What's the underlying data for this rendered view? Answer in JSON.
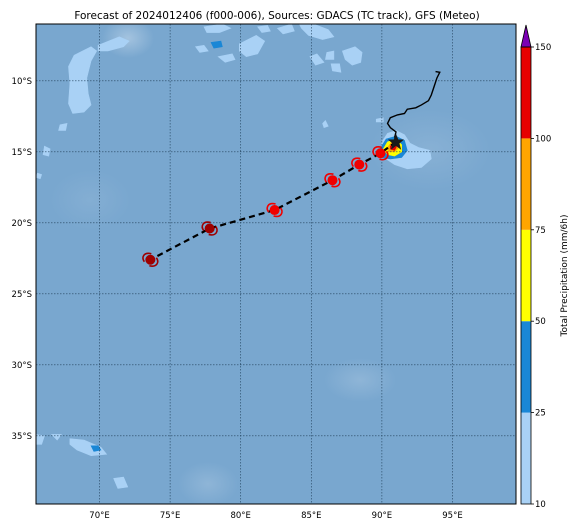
{
  "title": "Forecast of 2024012406 (f000-006), Sources: GDACS (TC track), GFS (Meteo)",
  "map": {
    "lon_range": [
      65.5,
      99.5
    ],
    "lat_range": [
      -39.8,
      -6.0
    ],
    "lon_ticks": [
      {
        "value": 70,
        "label": "70°E"
      },
      {
        "value": 75,
        "label": "75°E"
      },
      {
        "value": 80,
        "label": "80°E"
      },
      {
        "value": 85,
        "label": "85°E"
      },
      {
        "value": 90,
        "label": "90°E"
      },
      {
        "value": 95,
        "label": "95°E"
      }
    ],
    "lat_ticks": [
      {
        "value": -10,
        "label": "10°S"
      },
      {
        "value": -15,
        "label": "15°S"
      },
      {
        "value": -20,
        "label": "20°S"
      },
      {
        "value": -25,
        "label": "25°S"
      },
      {
        "value": -30,
        "label": "30°S"
      },
      {
        "value": -35,
        "label": "35°S"
      }
    ],
    "ocean_color": "#79a7cf",
    "gridlines": true
  },
  "colorbar": {
    "label": "Total Precipitation (mm/6h)",
    "ticks": [
      {
        "value": 10,
        "label": "10"
      },
      {
        "value": 25,
        "label": "25"
      },
      {
        "value": 50,
        "label": "50"
      },
      {
        "value": 75,
        "label": "75"
      },
      {
        "value": 100,
        "label": "100"
      },
      {
        "value": 150,
        "label": "150"
      }
    ],
    "bins": [
      {
        "from": 10,
        "to": 25,
        "color": "#a9d1f5"
      },
      {
        "from": 25,
        "to": 50,
        "color": "#1a87d6"
      },
      {
        "from": 50,
        "to": 75,
        "color": "#ffff00"
      },
      {
        "from": 75,
        "to": 100,
        "color": "#ffa500"
      },
      {
        "from": 100,
        "to": 150,
        "color": "#e60000"
      }
    ],
    "extend_color": "#7b00b4"
  },
  "observed_track": [
    [
      90.9,
      -14.0
    ],
    [
      91.0,
      -13.6
    ],
    [
      90.6,
      -13.3
    ],
    [
      90.4,
      -13.0
    ],
    [
      90.6,
      -12.6
    ],
    [
      91.1,
      -12.4
    ],
    [
      91.6,
      -12.3
    ],
    [
      91.8,
      -12.0
    ],
    [
      92.4,
      -11.9
    ],
    [
      92.8,
      -11.7
    ],
    [
      93.3,
      -11.4
    ],
    [
      93.5,
      -11.0
    ],
    [
      93.7,
      -10.4
    ],
    [
      93.9,
      -9.8
    ],
    [
      94.1,
      -9.4
    ],
    [
      93.8,
      -9.35
    ]
  ],
  "forecast_track": [
    {
      "lon": 91.0,
      "lat": -14.3,
      "intensity": "current"
    },
    {
      "lon": 89.9,
      "lat": -15.1,
      "intensity": "cyclone"
    },
    {
      "lon": 88.4,
      "lat": -15.9,
      "intensity": "cyclone"
    },
    {
      "lon": 86.5,
      "lat": -17.0,
      "intensity": "cyclone"
    },
    {
      "lon": 82.4,
      "lat": -19.1,
      "intensity": "cyclone"
    },
    {
      "lon": 77.8,
      "lat": -20.4,
      "intensity": "strong"
    },
    {
      "lon": 73.6,
      "lat": -22.6,
      "intensity": "strong"
    }
  ],
  "precip_areas": [
    {
      "level": 10,
      "points": [
        [
          68.2,
          -8.2
        ],
        [
          68.6,
          -8.0
        ],
        [
          69.4,
          -7.6
        ],
        [
          69.8,
          -7.9
        ],
        [
          69.4,
          -8.6
        ],
        [
          69.1,
          -9.8
        ],
        [
          69.2,
          -10.9
        ],
        [
          69.4,
          -11.7
        ],
        [
          68.9,
          -12.2
        ],
        [
          68.1,
          -12.3
        ],
        [
          67.8,
          -11.6
        ],
        [
          67.9,
          -10.2
        ],
        [
          67.8,
          -9.0
        ]
      ]
    },
    {
      "level": 10,
      "points": [
        [
          69.9,
          -7.5
        ],
        [
          71.4,
          -6.9
        ],
        [
          72.1,
          -7.2
        ],
        [
          71.7,
          -7.6
        ],
        [
          70.6,
          -7.9
        ],
        [
          69.9,
          -7.9
        ]
      ]
    },
    {
      "level": 10,
      "points": [
        [
          66.1,
          -14.6
        ],
        [
          66.5,
          -14.8
        ],
        [
          66.4,
          -15.3
        ],
        [
          66.0,
          -15.2
        ]
      ]
    },
    {
      "level": 10,
      "points": [
        [
          65.6,
          -16.5
        ],
        [
          65.9,
          -16.6
        ],
        [
          65.8,
          -16.9
        ],
        [
          65.5,
          -16.8
        ]
      ]
    },
    {
      "level": 10,
      "points": [
        [
          67.2,
          -13.1
        ],
        [
          67.7,
          -13.0
        ],
        [
          67.6,
          -13.5
        ],
        [
          67.1,
          -13.5
        ]
      ]
    },
    {
      "level": 10,
      "points": [
        [
          77.4,
          -6.2
        ],
        [
          78.7,
          -6.0
        ],
        [
          79.3,
          -6.3
        ],
        [
          78.5,
          -6.6
        ],
        [
          77.6,
          -6.6
        ]
      ]
    },
    {
      "level": 10,
      "points": [
        [
          76.8,
          -7.6
        ],
        [
          77.4,
          -7.5
        ],
        [
          77.7,
          -7.9
        ],
        [
          77.1,
          -8.0
        ]
      ]
    },
    {
      "level": 10,
      "points": [
        [
          78.4,
          -8.3
        ],
        [
          79.4,
          -8.1
        ],
        [
          79.6,
          -8.5
        ],
        [
          78.9,
          -8.7
        ]
      ]
    },
    {
      "level": 10,
      "points": [
        [
          79.9,
          -7.4
        ],
        [
          81.1,
          -6.8
        ],
        [
          81.7,
          -7.2
        ],
        [
          81.2,
          -8.1
        ],
        [
          80.4,
          -8.3
        ],
        [
          79.9,
          -7.9
        ]
      ]
    },
    {
      "level": 10,
      "points": [
        [
          81.2,
          -6.2
        ],
        [
          81.9,
          -6.1
        ],
        [
          82.1,
          -6.5
        ],
        [
          81.5,
          -6.6
        ]
      ]
    },
    {
      "level": 10,
      "points": [
        [
          82.6,
          -6.3
        ],
        [
          83.6,
          -6.0
        ],
        [
          83.8,
          -6.5
        ],
        [
          83.0,
          -6.7
        ]
      ]
    },
    {
      "level": 10,
      "points": [
        [
          84.1,
          -5.9
        ],
        [
          84.9,
          -5.9
        ],
        [
          86.2,
          -6.4
        ],
        [
          86.6,
          -6.9
        ],
        [
          85.8,
          -7.1
        ],
        [
          84.8,
          -6.8
        ],
        [
          84.3,
          -6.3
        ]
      ]
    },
    {
      "level": 10,
      "points": [
        [
          84.9,
          -8.3
        ],
        [
          85.4,
          -8.1
        ],
        [
          85.9,
          -8.7
        ],
        [
          85.3,
          -8.9
        ]
      ]
    },
    {
      "level": 10,
      "points": [
        [
          86.1,
          -8.0
        ],
        [
          86.6,
          -7.9
        ],
        [
          86.6,
          -8.5
        ],
        [
          86.0,
          -8.5
        ]
      ]
    },
    {
      "level": 10,
      "points": [
        [
          87.2,
          -7.9
        ],
        [
          88.1,
          -7.6
        ],
        [
          88.6,
          -8.0
        ],
        [
          88.5,
          -8.7
        ],
        [
          87.9,
          -8.9
        ],
        [
          87.4,
          -8.5
        ]
      ]
    },
    {
      "level": 10,
      "points": [
        [
          86.4,
          -8.8
        ],
        [
          87.0,
          -8.8
        ],
        [
          87.1,
          -9.4
        ],
        [
          86.5,
          -9.3
        ]
      ]
    },
    {
      "level": 10,
      "points": [
        [
          85.8,
          -13.0
        ],
        [
          86.0,
          -12.8
        ],
        [
          86.2,
          -13.2
        ],
        [
          85.9,
          -13.3
        ]
      ]
    },
    {
      "level": 10,
      "points": [
        [
          89.6,
          -12.7
        ],
        [
          90.1,
          -12.6
        ],
        [
          90.1,
          -12.9
        ],
        [
          89.6,
          -12.9
        ]
      ]
    },
    {
      "level": 10,
      "points": [
        [
          90.0,
          -14.3
        ],
        [
          90.4,
          -13.7
        ],
        [
          91.0,
          -13.5
        ],
        [
          91.6,
          -13.8
        ],
        [
          92.0,
          -14.4
        ],
        [
          92.6,
          -14.7
        ],
        [
          93.4,
          -14.9
        ],
        [
          93.5,
          -15.5
        ],
        [
          92.8,
          -16.1
        ],
        [
          91.8,
          -16.2
        ],
        [
          90.9,
          -15.9
        ],
        [
          90.3,
          -15.5
        ],
        [
          89.9,
          -15.0
        ]
      ]
    },
    {
      "level": 10,
      "points": [
        [
          65.5,
          -34.9
        ],
        [
          66.1,
          -35.0
        ],
        [
          65.9,
          -35.6
        ],
        [
          65.5,
          -35.6
        ]
      ]
    },
    {
      "level": 10,
      "points": [
        [
          66.6,
          -34.9
        ],
        [
          67.3,
          -34.9
        ],
        [
          67.0,
          -35.3
        ]
      ]
    },
    {
      "level": 10,
      "points": [
        [
          67.9,
          -35.2
        ],
        [
          68.9,
          -35.3
        ],
        [
          70.1,
          -35.8
        ],
        [
          70.5,
          -36.3
        ],
        [
          69.4,
          -36.4
        ],
        [
          68.4,
          -36.0
        ],
        [
          67.9,
          -35.6
        ]
      ]
    },
    {
      "level": 10,
      "points": [
        [
          71.0,
          -38.0
        ],
        [
          71.7,
          -37.9
        ],
        [
          72.0,
          -38.6
        ],
        [
          71.3,
          -38.7
        ]
      ]
    },
    {
      "level": 25,
      "points": [
        [
          77.9,
          -7.3
        ],
        [
          78.6,
          -7.2
        ],
        [
          78.7,
          -7.6
        ],
        [
          78.1,
          -7.7
        ]
      ]
    },
    {
      "level": 25,
      "points": [
        [
          89.8,
          -14.9
        ],
        [
          90.3,
          -14.1
        ],
        [
          91.0,
          -13.9
        ],
        [
          91.6,
          -14.2
        ],
        [
          91.8,
          -14.9
        ],
        [
          91.4,
          -15.4
        ],
        [
          90.6,
          -15.5
        ],
        [
          90.0,
          -15.4
        ]
      ]
    },
    {
      "level": 25,
      "points": [
        [
          69.4,
          -35.7
        ],
        [
          69.9,
          -35.7
        ],
        [
          70.1,
          -36.0
        ],
        [
          69.6,
          -36.1
        ]
      ]
    },
    {
      "level": 50,
      "points": [
        [
          90.1,
          -14.8
        ],
        [
          90.4,
          -14.3
        ],
        [
          91.0,
          -14.1
        ],
        [
          91.4,
          -14.5
        ],
        [
          91.4,
          -15.0
        ],
        [
          90.9,
          -15.3
        ],
        [
          90.4,
          -15.2
        ]
      ]
    },
    {
      "level": 75,
      "points": [
        [
          90.4,
          -14.7
        ],
        [
          90.7,
          -14.3
        ],
        [
          91.1,
          -14.3
        ],
        [
          91.2,
          -14.7
        ],
        [
          90.9,
          -15.0
        ],
        [
          90.5,
          -15.0
        ]
      ]
    },
    {
      "level": 100,
      "points": [
        [
          90.6,
          -14.6
        ],
        [
          90.9,
          -14.3
        ],
        [
          91.1,
          -14.5
        ],
        [
          90.9,
          -14.9
        ],
        [
          90.6,
          -14.8
        ]
      ]
    }
  ]
}
